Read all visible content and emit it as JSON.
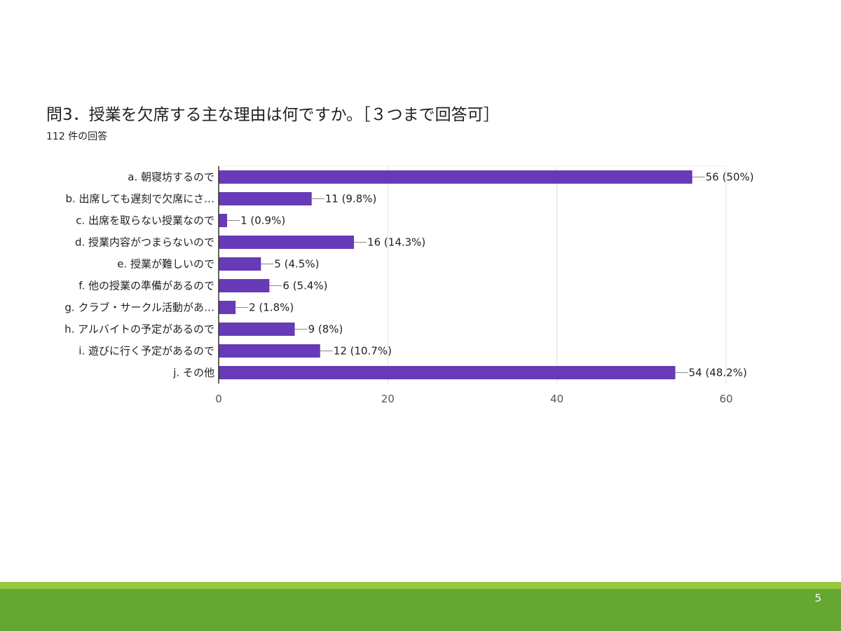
{
  "slide": {
    "page_number": "5"
  },
  "chart_data": {
    "type": "bar",
    "orientation": "horizontal",
    "title": "問3．授業を欠席する主な理由は何ですか。［３つまで回答可］",
    "subtitle": "112 件の回答",
    "categories": [
      "a. 朝寝坊するので",
      "b. 出席しても遅刻で欠席にさ…",
      "c. 出席を取らない授業なので",
      "d. 授業内容がつまらないので",
      "e. 授業が難しいので",
      "f. 他の授業の準備があるので",
      "g. クラブ・サークル活動があ…",
      "h. アルバイトの予定があるので",
      "i. 遊びに行く予定があるので",
      "j. その他"
    ],
    "values": [
      56,
      11,
      1,
      16,
      5,
      6,
      2,
      9,
      12,
      54
    ],
    "value_labels": [
      "56 (50%)",
      "11 (9.8%)",
      "1 (0.9%)",
      "16 (14.3%)",
      "5 (4.5%)",
      "6 (5.4%)",
      "2 (1.8%)",
      "9 (8%)",
      "12 (10.7%)",
      "54 (48.2%)"
    ],
    "xlim": [
      0,
      60
    ],
    "x_ticks": [
      "0",
      "20",
      "40",
      "60"
    ],
    "grid": true,
    "bar_color": "#673ab7"
  }
}
